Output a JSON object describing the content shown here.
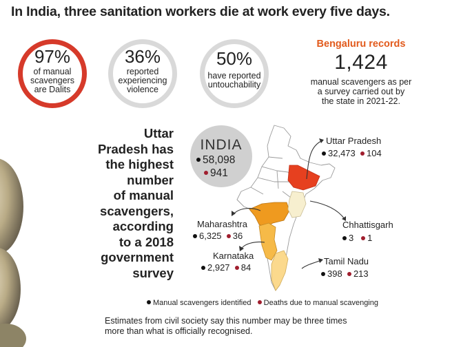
{
  "headline": "In India, three sanitation workers die at work every five days.",
  "stats": [
    {
      "value": "97%",
      "lines": [
        "of manual",
        "scavengers",
        "are Dalits"
      ],
      "ring": "red"
    },
    {
      "value": "36%",
      "lines": [
        "reported",
        "experiencing",
        "violence"
      ],
      "ring": "grey"
    },
    {
      "value": "50%",
      "lines": [
        "have reported",
        "untouchability"
      ],
      "ring": "grey"
    }
  ],
  "bengaluru": {
    "heading": "Bengaluru records",
    "count": "1,424",
    "desc_lines": [
      "manual scavengers as per",
      "a survey carried out by",
      "the state in 2021-22."
    ]
  },
  "up_statement_lines": [
    "Uttar",
    "Pradesh has",
    "the highest",
    "number",
    "of manual",
    "scavengers,",
    "according",
    "to a 2018",
    "government",
    "survey"
  ],
  "india": {
    "label": "INDIA",
    "identified": "58,098",
    "deaths": "941"
  },
  "states": [
    {
      "name": "Uttar Pradesh",
      "identified": "32,473",
      "deaths": "104",
      "color": "#e6401f"
    },
    {
      "name": "Maharashtra",
      "identified": "6,325",
      "deaths": "36",
      "color": "#ef9a1f"
    },
    {
      "name": "Chhattisgarh",
      "identified": "3",
      "deaths": "1",
      "color": "#f7efcf"
    },
    {
      "name": "Karnataka",
      "identified": "2,927",
      "deaths": "84",
      "color": "#f6ba48"
    },
    {
      "name": "Tamil Nadu",
      "identified": "398",
      "deaths": "213",
      "color": "#fbd98d"
    }
  ],
  "colors": {
    "identified_dot": "#111111",
    "deaths_dot": "#a01e2e",
    "accent_orange": "#e25a1c",
    "ring_red": "#d63a2a",
    "ring_grey": "#d9d9d9"
  },
  "legend": {
    "identified": "Manual scavengers identified",
    "deaths": "Deaths due to manual scavenging"
  },
  "footnote_lines": [
    "Estimates from civil society say this number may be three times",
    "more than what is officially recognised."
  ]
}
